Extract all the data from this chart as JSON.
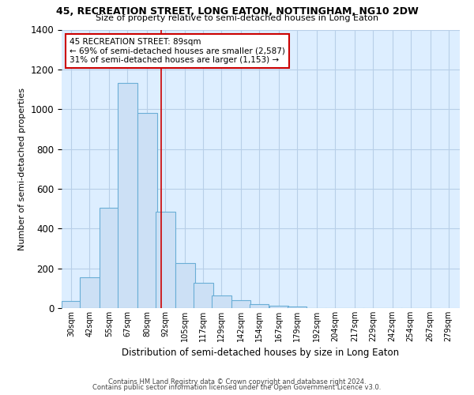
{
  "title": "45, RECREATION STREET, LONG EATON, NOTTINGHAM, NG10 2DW",
  "subtitle": "Size of property relative to semi-detached houses in Long Eaton",
  "xlabel": "Distribution of semi-detached houses by size in Long Eaton",
  "ylabel": "Number of semi-detached properties",
  "bin_labels": [
    "30sqm",
    "42sqm",
    "55sqm",
    "67sqm",
    "80sqm",
    "92sqm",
    "105sqm",
    "117sqm",
    "129sqm",
    "142sqm",
    "154sqm",
    "167sqm",
    "179sqm",
    "192sqm",
    "204sqm",
    "217sqm",
    "229sqm",
    "242sqm",
    "254sqm",
    "267sqm",
    "279sqm"
  ],
  "bar_values": [
    35,
    155,
    505,
    1130,
    980,
    485,
    228,
    128,
    62,
    40,
    20,
    10,
    8,
    0,
    0,
    0,
    0,
    0,
    0,
    0
  ],
  "bar_color": "#cce0f5",
  "bar_edge_color": "#6aaed6",
  "property_line_label": "45 RECREATION STREET: 89sqm",
  "annotation_line1": "← 69% of semi-detached houses are smaller (2,587)",
  "annotation_line2": "31% of semi-detached houses are larger (1,153) →",
  "annotation_box_color": "#ffffff",
  "annotation_box_edge": "#cc0000",
  "line_color": "#cc0000",
  "ylim": [
    0,
    1400
  ],
  "background_color": "#ddeeff",
  "footer1": "Contains HM Land Registry data © Crown copyright and database right 2024.",
  "footer2": "Contains public sector information licensed under the Open Government Licence v3.0."
}
